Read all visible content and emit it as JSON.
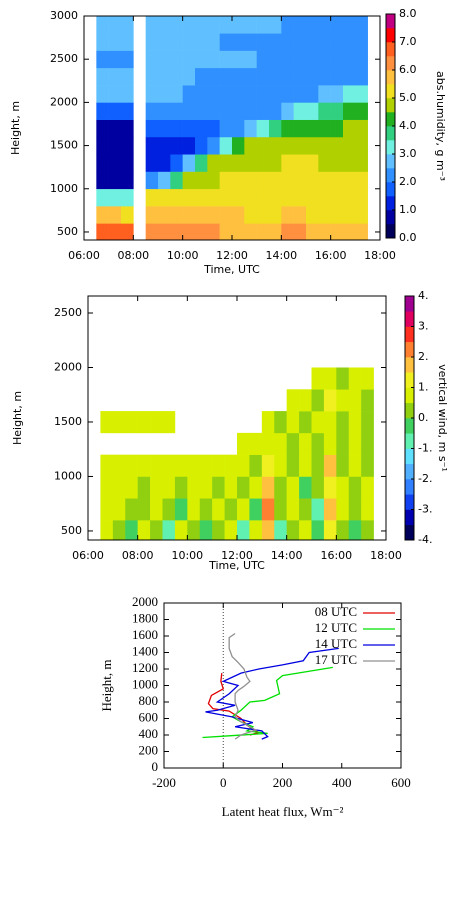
{
  "chart_data": [
    {
      "type": "heatmap",
      "xlabel": "Time, UTC",
      "ylabel": "Height, m",
      "xlim": [
        6,
        18
      ],
      "ylim": [
        407,
        3000
      ],
      "xticks": [
        {
          "value": 6,
          "label": "06:00"
        },
        {
          "value": 8,
          "label": "08:00"
        },
        {
          "value": 10,
          "label": "10:00"
        },
        {
          "value": 12,
          "label": "12:00"
        },
        {
          "value": 14,
          "label": "14:00"
        },
        {
          "value": 16,
          "label": "16:00"
        },
        {
          "value": 18,
          "label": "18:00"
        }
      ],
      "yticks": [
        500,
        1000,
        1500,
        2000,
        2500,
        3000
      ],
      "x": [
        6.75,
        7.25,
        7.75,
        8.25,
        8.75,
        9.25,
        9.75,
        10.25,
        10.75,
        11.25,
        11.75,
        12.25,
        12.75,
        13.25,
        13.75,
        14.25,
        14.75,
        15.25,
        15.75,
        16.25,
        16.75,
        17.25
      ],
      "y": [
        500,
        700,
        900,
        1100,
        1300,
        1500,
        1700,
        1900,
        2100,
        2300,
        2500,
        2700,
        2900
      ],
      "z": [
        [
          6.5,
          6.5,
          6.5,
          null,
          6,
          6,
          6,
          6,
          6,
          6,
          5.5,
          5.5,
          5.5,
          5.5,
          5.5,
          6,
          6,
          5.5,
          5.5,
          5.5,
          5.5,
          5.5
        ],
        [
          5.5,
          5.5,
          5,
          null,
          5.5,
          5.5,
          5.5,
          5.5,
          5.5,
          5.5,
          5.5,
          5.5,
          5,
          5,
          5,
          5.5,
          5.5,
          5,
          5,
          5,
          5,
          5
        ],
        [
          3,
          3,
          3,
          null,
          5,
          5,
          5,
          5,
          5,
          5,
          5,
          5,
          5,
          5,
          5,
          5,
          5,
          5,
          5,
          5,
          5,
          5
        ],
        [
          0.5,
          0.5,
          0.5,
          null,
          2,
          2.5,
          3.5,
          4.5,
          4.5,
          4.5,
          5,
          5,
          5,
          5,
          5,
          5,
          5,
          5,
          5,
          5,
          5,
          5
        ],
        [
          0.5,
          0.5,
          0.5,
          null,
          1,
          1,
          1.5,
          2.5,
          3.5,
          4.5,
          4.5,
          4.5,
          4.5,
          4.5,
          4.5,
          5,
          5,
          5,
          4.5,
          4.5,
          4.5,
          4.5
        ],
        [
          0.5,
          0.5,
          0.5,
          null,
          1,
          1,
          1,
          1,
          1.5,
          2,
          3,
          4,
          4.5,
          4.5,
          4.5,
          4.5,
          4.5,
          4.5,
          4.5,
          4.5,
          4.5,
          4.5
        ],
        [
          0.8,
          0.8,
          0.8,
          null,
          1.5,
          1.5,
          1.5,
          1.5,
          1.5,
          1.5,
          2,
          2,
          2.5,
          3,
          3.5,
          4,
          4,
          4,
          4,
          4,
          4.5,
          4.5
        ],
        [
          1.5,
          1.5,
          1.5,
          null,
          2,
          2,
          2,
          2,
          2,
          2,
          2,
          2,
          2,
          2,
          2,
          2.5,
          3,
          3,
          3.5,
          3.5,
          4,
          4
        ],
        [
          2.5,
          2.5,
          2.5,
          null,
          2.5,
          2.5,
          2.5,
          2,
          2,
          2,
          2,
          2,
          2,
          2,
          2,
          2,
          2,
          2,
          2.5,
          2.5,
          3,
          3
        ],
        [
          2.8,
          2.8,
          2.5,
          null,
          2.5,
          2.5,
          2.5,
          2.5,
          2,
          2,
          2,
          2,
          2,
          2,
          2,
          2,
          2,
          2,
          2,
          2,
          2,
          2
        ],
        [
          2.2,
          2.2,
          2.2,
          null,
          2.5,
          2.5,
          2.5,
          2.5,
          2.5,
          2.5,
          2.5,
          2.5,
          2.5,
          2,
          2,
          2,
          2,
          2,
          2,
          2,
          2,
          2
        ],
        [
          2.5,
          2.5,
          2.5,
          null,
          2.5,
          2.5,
          2.5,
          2.5,
          2.5,
          2.5,
          2,
          2,
          2,
          2,
          2,
          2,
          2,
          2,
          2,
          2,
          2,
          2
        ],
        [
          2.5,
          2.5,
          2.5,
          null,
          2.5,
          2.5,
          2.5,
          2.5,
          2.5,
          2.5,
          2.5,
          2.5,
          2.5,
          2.5,
          2.5,
          2,
          2,
          2,
          2,
          2,
          2,
          2
        ]
      ],
      "colorbar": {
        "label": "abs.humidity, g m⁻³",
        "zlim": [
          0,
          8
        ],
        "ticks": [
          {
            "value": 0,
            "label": "0.0"
          },
          {
            "value": 1,
            "label": "1.0"
          },
          {
            "value": 2,
            "label": "2.0"
          },
          {
            "value": 3,
            "label": "3.0"
          },
          {
            "value": 4,
            "label": "4.0"
          },
          {
            "value": 5,
            "label": "5.0"
          },
          {
            "value": 6,
            "label": "6.0"
          },
          {
            "value": 7,
            "label": "7.0"
          },
          {
            "value": 8,
            "label": "8.0"
          }
        ],
        "colors": [
          "#00005a",
          "#0000a0",
          "#0020e0",
          "#1060ff",
          "#3090ff",
          "#60c0ff",
          "#70f0e0",
          "#30d080",
          "#20b020",
          "#b0d000",
          "#f0e020",
          "#ffc040",
          "#ff9040",
          "#ff6020",
          "#ff0000",
          "#c00080"
        ]
      }
    },
    {
      "type": "heatmap",
      "xlabel": "Time, UTC",
      "ylabel": "Height, m",
      "xlim": [
        6,
        18
      ],
      "ylim": [
        417,
        2656
      ],
      "xticks": [
        {
          "value": 6,
          "label": "06:00"
        },
        {
          "value": 8,
          "label": "08:00"
        },
        {
          "value": 10,
          "label": "10:00"
        },
        {
          "value": 12,
          "label": "12:00"
        },
        {
          "value": 14,
          "label": "14:00"
        },
        {
          "value": 16,
          "label": "16:00"
        },
        {
          "value": 18,
          "label": "18:00"
        }
      ],
      "yticks": [
        500,
        1000,
        1500,
        2000,
        2500
      ],
      "x": [
        6.75,
        7.25,
        7.75,
        8.25,
        8.75,
        9.25,
        9.75,
        10.25,
        10.75,
        11.25,
        11.75,
        12.25,
        12.75,
        13.25,
        13.75,
        14.25,
        14.75,
        15.25,
        15.75,
        16.25,
        16.75,
        17.25
      ],
      "y": [
        500,
        700,
        900,
        1100,
        1300,
        1500,
        1700,
        1900
      ],
      "z": [
        [
          0.5,
          0,
          -0.5,
          0.5,
          0,
          -1,
          0.5,
          0,
          -0.5,
          0,
          0.5,
          -1,
          0.5,
          1.5,
          -1,
          0,
          0.5,
          -0.5,
          1,
          0,
          -0.5,
          0
        ],
        [
          0.5,
          0.5,
          0,
          0,
          0.5,
          0,
          -0.5,
          0.5,
          0,
          0.5,
          0,
          0.5,
          -0.5,
          2,
          0,
          0.5,
          0,
          -1,
          1.5,
          0.5,
          0,
          0.5
        ],
        [
          0.5,
          0.5,
          0.5,
          0,
          0.5,
          0.5,
          0,
          0.5,
          0.5,
          0,
          0.5,
          0,
          0.5,
          1.5,
          0,
          0.5,
          -0.5,
          0,
          1,
          0.5,
          0,
          0.5
        ],
        [
          0.5,
          0.5,
          0.5,
          0.5,
          0.5,
          0.5,
          0.5,
          0.5,
          0.5,
          0.5,
          0.5,
          0.5,
          0,
          1,
          0.5,
          0,
          0.5,
          0,
          1.5,
          0,
          0.5,
          0
        ],
        [
          null,
          null,
          null,
          null,
          null,
          null,
          null,
          null,
          null,
          null,
          null,
          0.5,
          0.5,
          0.5,
          0.5,
          0,
          0.5,
          0,
          0.5,
          0,
          0.5,
          0
        ],
        [
          0.5,
          0.5,
          0.5,
          0.5,
          0.5,
          0.5,
          null,
          null,
          null,
          null,
          null,
          null,
          null,
          0.5,
          0,
          0.5,
          0,
          0.5,
          0.5,
          0,
          0.5,
          0
        ],
        [
          null,
          null,
          null,
          null,
          null,
          null,
          null,
          null,
          null,
          null,
          null,
          null,
          null,
          null,
          null,
          0.5,
          0.5,
          0,
          1,
          0.5,
          0.5,
          0
        ],
        [
          null,
          null,
          null,
          null,
          null,
          null,
          null,
          null,
          null,
          null,
          null,
          null,
          null,
          null,
          null,
          null,
          null,
          0.5,
          0.5,
          0,
          0.5,
          0.5
        ]
      ],
      "colorbar": {
        "label": "vertical wind, m s⁻¹",
        "zlim": [
          -4,
          4
        ],
        "ticks": [
          {
            "value": -4,
            "label": "-4."
          },
          {
            "value": -3,
            "label": "-3."
          },
          {
            "value": -2,
            "label": "-2."
          },
          {
            "value": -1,
            "label": "-1."
          },
          {
            "value": 0,
            "label": "0."
          },
          {
            "value": 1,
            "label": "1."
          },
          {
            "value": 2,
            "label": "2."
          },
          {
            "value": 3,
            "label": "3."
          },
          {
            "value": 4,
            "label": "4."
          }
        ],
        "colors": [
          "#00005a",
          "#0000b0",
          "#1040f0",
          "#3080ff",
          "#50b0ff",
          "#60e0ff",
          "#60f0b0",
          "#40d060",
          "#90d010",
          "#d8f000",
          "#f0f020",
          "#ffc040",
          "#ff8030",
          "#ff3020",
          "#e00060",
          "#a00090"
        ]
      }
    },
    {
      "type": "profile",
      "xlabel": "Latent heat flux, Wm⁻²",
      "ylabel": "Height, m",
      "xlim": [
        -200,
        600
      ],
      "ylim": [
        0,
        2000
      ],
      "xticks": [
        -200,
        0,
        200,
        400,
        600
      ],
      "yticks": [
        0,
        200,
        400,
        600,
        800,
        1000,
        1200,
        1400,
        1600,
        1800,
        2000
      ],
      "legend": "top-right",
      "series": [
        {
          "name": "08 UTC",
          "color": "#e00000",
          "x": [
            -5,
            -8,
            0,
            -40,
            -50,
            -35,
            20,
            60,
            80,
            100,
            120,
            90
          ],
          "y": [
            1150,
            1050,
            960,
            880,
            780,
            720,
            690,
            600,
            520,
            470,
            430,
            400
          ]
        },
        {
          "name": "12 UTC",
          "color": "#00e000",
          "x": [
            370,
            200,
            180,
            190,
            140,
            90,
            60,
            30,
            60,
            100,
            80,
            150,
            20,
            -70
          ],
          "y": [
            1220,
            1120,
            1060,
            900,
            820,
            800,
            700,
            620,
            560,
            500,
            450,
            420,
            390,
            370
          ]
        },
        {
          "name": "14 UTC",
          "color": "#0000e0",
          "x": [
            390,
            290,
            270,
            200,
            120,
            60,
            0,
            50,
            20,
            -20,
            40,
            -20,
            -60,
            30,
            100,
            40,
            130,
            150,
            130
          ],
          "y": [
            1450,
            1400,
            1300,
            1250,
            1200,
            1150,
            1050,
            1000,
            900,
            800,
            760,
            700,
            680,
            620,
            550,
            500,
            450,
            380,
            350
          ]
        },
        {
          "name": "17 UTC",
          "color": "#909090",
          "x": [
            40,
            20,
            20,
            30,
            50,
            70,
            80,
            90,
            70,
            50,
            40,
            40,
            50,
            40,
            60,
            90,
            110,
            60,
            40
          ],
          "y": [
            1630,
            1580,
            1450,
            1350,
            1280,
            1200,
            1100,
            1050,
            990,
            940,
            900,
            800,
            700,
            620,
            560,
            500,
            460,
            400,
            350
          ]
        }
      ]
    }
  ]
}
